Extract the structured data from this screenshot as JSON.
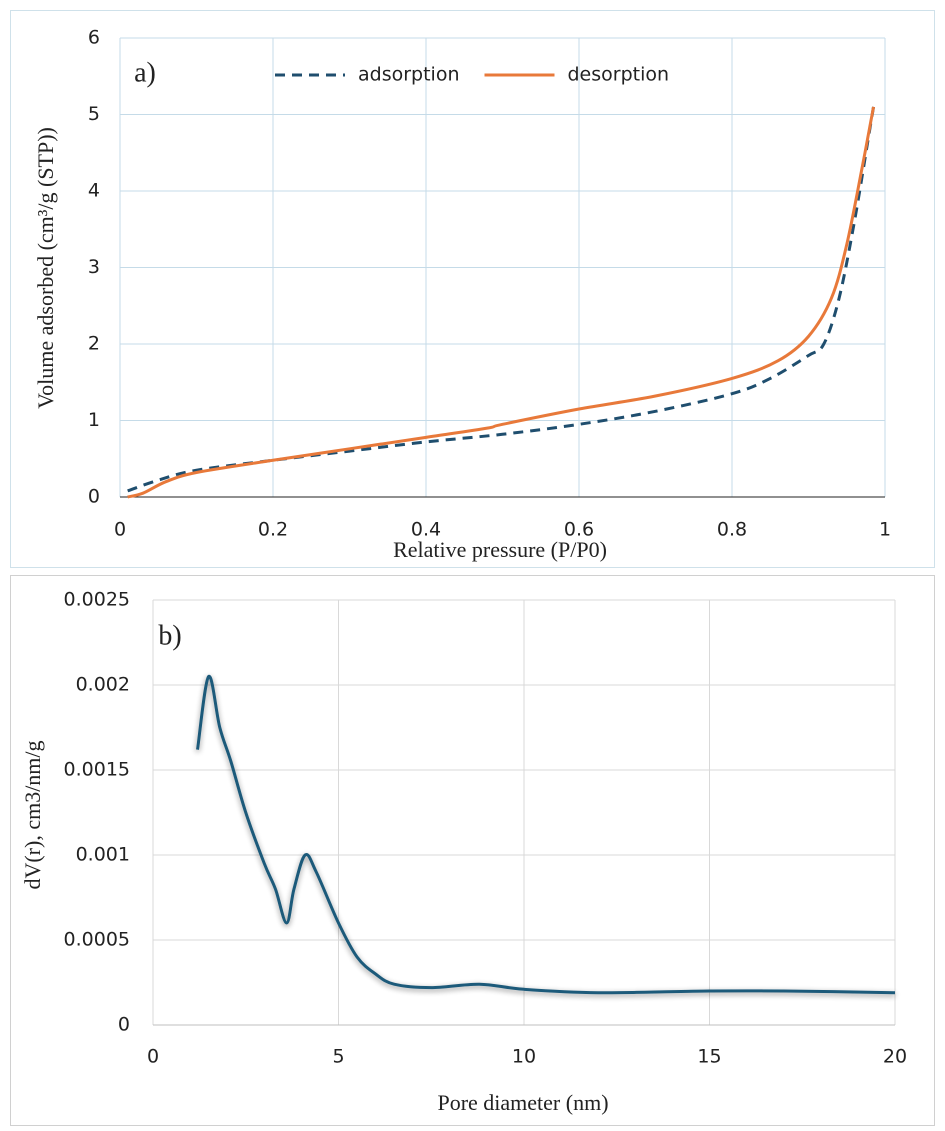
{
  "chart_data": [
    {
      "type": "line",
      "annotation": "a)",
      "x_label": "Relative pressure (P/P0)",
      "y_label": "Volume adsorbed (cm³/g (STP))",
      "xlim": [
        0,
        1
      ],
      "xticks": [
        0,
        0.2,
        0.4,
        0.6,
        0.8,
        1
      ],
      "ylim": [
        0,
        6
      ],
      "yticks": [
        0,
        1,
        2,
        3,
        4,
        5,
        6
      ],
      "grid": true,
      "legend": "top",
      "series": [
        {
          "name": "adsorption",
          "color": "#1f4e6e",
          "line_style": "dashed",
          "x": [
            0.01,
            0.05,
            0.1,
            0.2,
            0.3,
            0.4,
            0.5,
            0.6,
            0.7,
            0.8,
            0.85,
            0.9,
            0.92,
            0.94,
            0.96,
            0.98,
            0.985
          ],
          "values": [
            0.08,
            0.22,
            0.35,
            0.48,
            0.6,
            0.72,
            0.82,
            0.95,
            1.12,
            1.35,
            1.55,
            1.85,
            2.0,
            2.6,
            3.6,
            4.8,
            5.1
          ]
        },
        {
          "name": "desorption",
          "color": "#e8793a",
          "line_style": "solid",
          "x": [
            0.01,
            0.03,
            0.06,
            0.1,
            0.2,
            0.3,
            0.4,
            0.48,
            0.5,
            0.6,
            0.7,
            0.8,
            0.86,
            0.9,
            0.93,
            0.95,
            0.97,
            0.985
          ],
          "values": [
            0.0,
            0.05,
            0.2,
            0.32,
            0.48,
            0.63,
            0.78,
            0.9,
            0.95,
            1.15,
            1.32,
            1.55,
            1.78,
            2.1,
            2.6,
            3.3,
            4.3,
            5.1
          ]
        }
      ]
    },
    {
      "type": "line",
      "annotation": "b)",
      "x_label": "Pore diameter (nm)",
      "y_label": "dV(r), cm3/nm/g",
      "xlim": [
        0,
        20
      ],
      "xticks": [
        0,
        5,
        10,
        15,
        20
      ],
      "ylim": [
        0,
        0.0025
      ],
      "yticks": [
        0,
        0.0005,
        0.001,
        0.0015,
        0.002,
        0.0025
      ],
      "grid": true,
      "series": [
        {
          "color": "#1f5a7a",
          "line_style": "solid",
          "x": [
            1.2,
            1.5,
            1.8,
            2.1,
            2.5,
            3.0,
            3.3,
            3.6,
            3.8,
            4.1,
            4.4,
            5.0,
            5.5,
            6.0,
            6.5,
            7.5,
            8.8,
            10,
            12,
            15,
            17,
            20
          ],
          "values": [
            0.00162,
            0.00205,
            0.00175,
            0.00155,
            0.00125,
            0.00095,
            0.0008,
            0.0006,
            0.0008,
            0.001,
            0.0009,
            0.0006,
            0.0004,
            0.0003,
            0.00024,
            0.00022,
            0.00024,
            0.00021,
            0.00019,
            0.0002,
            0.0002,
            0.00019
          ]
        }
      ]
    }
  ]
}
